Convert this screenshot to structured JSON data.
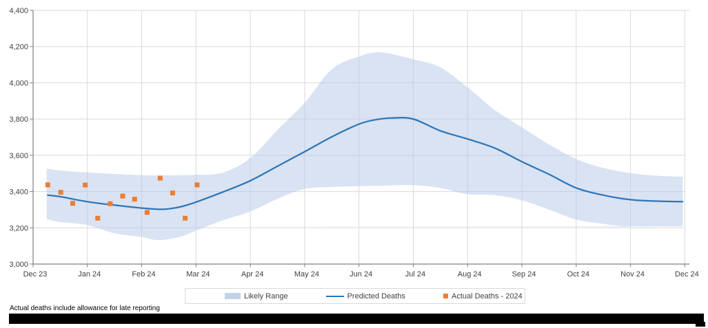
{
  "page": {
    "background": "#ffffff"
  },
  "footnote": "Actual deaths include allowance for late reporting",
  "redaction": {
    "present": true,
    "color": "#000000"
  },
  "legend": {
    "items": [
      {
        "kind": "band",
        "label": "Likely Range"
      },
      {
        "kind": "line",
        "label": "Predicted Deaths"
      },
      {
        "kind": "marker",
        "label": "Actual Deaths - 2024"
      }
    ]
  },
  "colors": {
    "band_fill": "#b4c7e7",
    "band_fill_opacity": 0.5,
    "predicted_line": "#2e75b6",
    "actual_marker": "#ed7d31",
    "gridline": "#d9d9d9",
    "axis": "#7f7f7f",
    "tick_label": "#404040"
  },
  "chart_data": {
    "type": "line",
    "title": "",
    "xlabel": "",
    "ylabel": "",
    "grid": true,
    "legend_position": "bottom",
    "x_axis": {
      "unit": "months_from_first_tick",
      "tick_labels": [
        "Dec 23",
        "Jan 24",
        "Feb 24",
        "Mar 24",
        "Apr 24",
        "May 24",
        "Jun 24",
        "Jul 24",
        "Aug 24",
        "Sep 24",
        "Oct 24",
        "Nov 24",
        "Dec 24"
      ]
    },
    "y_axis": {
      "min": 3000,
      "max": 4400,
      "step": 200,
      "tick_labels": [
        "3,000",
        "3,200",
        "3,400",
        "3,600",
        "3,800",
        "4,000",
        "4,200",
        "4,400"
      ]
    },
    "series": [
      {
        "name": "Likely Range",
        "kind": "band",
        "color": "#b4c7e7",
        "points": [
          {
            "m": 0.25,
            "low": 3248,
            "high": 3527
          },
          {
            "m": 0.5,
            "low": 3232,
            "high": 3516
          },
          {
            "m": 1.0,
            "low": 3215,
            "high": 3505
          },
          {
            "m": 1.5,
            "low": 3170,
            "high": 3497
          },
          {
            "m": 2.0,
            "low": 3150,
            "high": 3490
          },
          {
            "m": 2.3,
            "low": 3132,
            "high": 3489
          },
          {
            "m": 2.7,
            "low": 3150,
            "high": 3490
          },
          {
            "m": 3.0,
            "low": 3185,
            "high": 3492
          },
          {
            "m": 3.5,
            "low": 3242,
            "high": 3505
          },
          {
            "m": 4.0,
            "low": 3290,
            "high": 3585
          },
          {
            "m": 4.5,
            "low": 3360,
            "high": 3740
          },
          {
            "m": 5.0,
            "low": 3415,
            "high": 3890
          },
          {
            "m": 5.5,
            "low": 3425,
            "high": 4075
          },
          {
            "m": 6.0,
            "low": 3430,
            "high": 4145
          },
          {
            "m": 6.4,
            "low": 3432,
            "high": 4168
          },
          {
            "m": 7.0,
            "low": 3435,
            "high": 4130
          },
          {
            "m": 7.5,
            "low": 3420,
            "high": 4085
          },
          {
            "m": 8.0,
            "low": 3385,
            "high": 3975
          },
          {
            "m": 8.5,
            "low": 3380,
            "high": 3850
          },
          {
            "m": 9.0,
            "low": 3352,
            "high": 3755
          },
          {
            "m": 9.5,
            "low": 3300,
            "high": 3660
          },
          {
            "m": 10.0,
            "low": 3245,
            "high": 3580
          },
          {
            "m": 10.5,
            "low": 3222,
            "high": 3530
          },
          {
            "m": 11.0,
            "low": 3205,
            "high": 3502
          },
          {
            "m": 11.5,
            "low": 3202,
            "high": 3487
          },
          {
            "m": 11.96,
            "low": 3208,
            "high": 3482
          }
        ]
      },
      {
        "name": "Predicted Deaths",
        "kind": "line",
        "color": "#2e75b6",
        "points": [
          {
            "m": 0.27,
            "v": 3380
          },
          {
            "m": 0.5,
            "v": 3372
          },
          {
            "m": 1.0,
            "v": 3344
          },
          {
            "m": 1.5,
            "v": 3325
          },
          {
            "m": 2.0,
            "v": 3309
          },
          {
            "m": 2.4,
            "v": 3302
          },
          {
            "m": 2.7,
            "v": 3315
          },
          {
            "m": 3.0,
            "v": 3342
          },
          {
            "m": 3.5,
            "v": 3398
          },
          {
            "m": 4.0,
            "v": 3460
          },
          {
            "m": 4.5,
            "v": 3540
          },
          {
            "m": 5.0,
            "v": 3620
          },
          {
            "m": 5.5,
            "v": 3702
          },
          {
            "m": 6.0,
            "v": 3772
          },
          {
            "m": 6.3,
            "v": 3796
          },
          {
            "m": 6.6,
            "v": 3806
          },
          {
            "m": 7.0,
            "v": 3800
          },
          {
            "m": 7.5,
            "v": 3735
          },
          {
            "m": 8.0,
            "v": 3690
          },
          {
            "m": 8.5,
            "v": 3640
          },
          {
            "m": 9.0,
            "v": 3565
          },
          {
            "m": 9.5,
            "v": 3495
          },
          {
            "m": 10.0,
            "v": 3420
          },
          {
            "m": 10.5,
            "v": 3380
          },
          {
            "m": 11.0,
            "v": 3355
          },
          {
            "m": 11.5,
            "v": 3347
          },
          {
            "m": 11.96,
            "v": 3344
          }
        ]
      },
      {
        "name": "Actual Deaths - 2024",
        "kind": "scatter",
        "color": "#ed7d31",
        "points": [
          {
            "m": 0.27,
            "v": 3437
          },
          {
            "m": 0.51,
            "v": 3396
          },
          {
            "m": 0.73,
            "v": 3335
          },
          {
            "m": 0.96,
            "v": 3436
          },
          {
            "m": 1.19,
            "v": 3253
          },
          {
            "m": 1.42,
            "v": 3333
          },
          {
            "m": 1.65,
            "v": 3375
          },
          {
            "m": 1.87,
            "v": 3358
          },
          {
            "m": 2.1,
            "v": 3285
          },
          {
            "m": 2.34,
            "v": 3474
          },
          {
            "m": 2.57,
            "v": 3392
          },
          {
            "m": 2.8,
            "v": 3253
          },
          {
            "m": 3.02,
            "v": 3437
          }
        ]
      }
    ]
  }
}
